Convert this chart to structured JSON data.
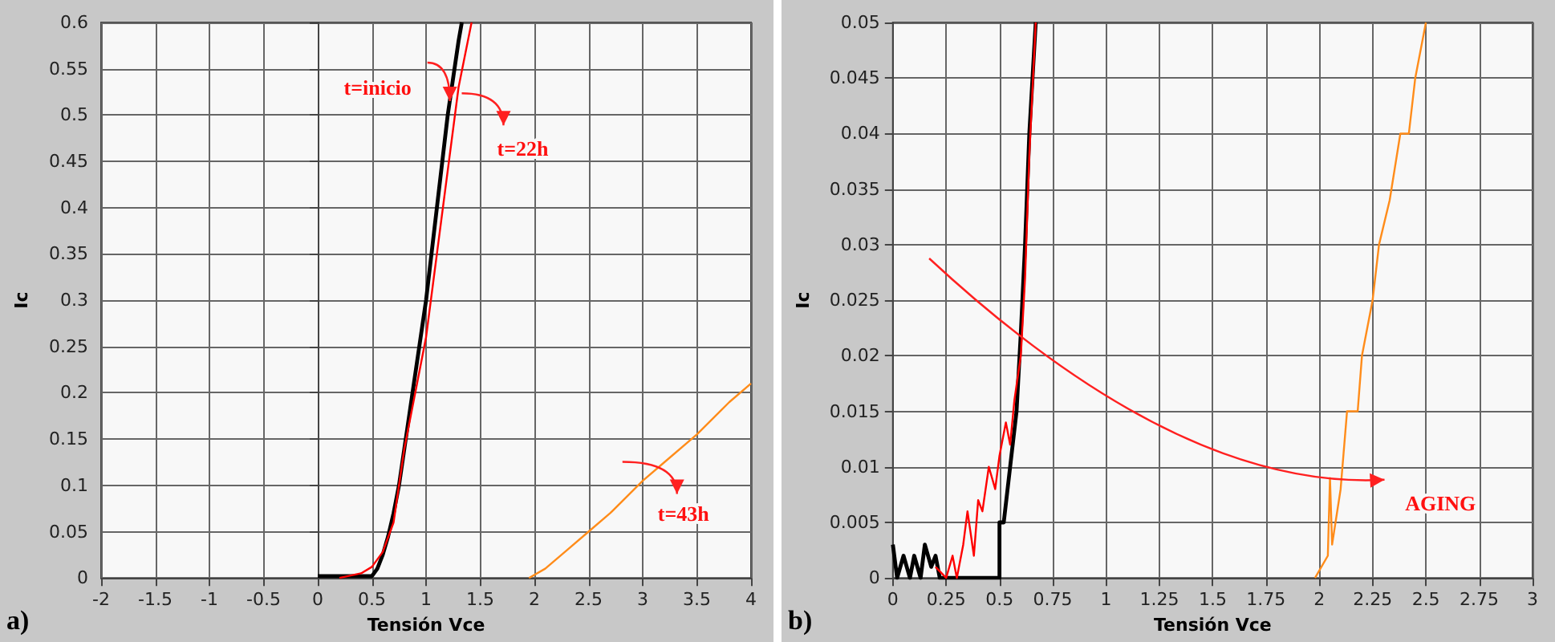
{
  "chart_data": [
    {
      "type": "line",
      "xlabel": "Tensión Vce",
      "ylabel": "Ic",
      "xlim": [
        -2,
        4
      ],
      "xticks": [
        -2,
        -1.5,
        -1,
        -0.5,
        0,
        0.5,
        1,
        1.5,
        2,
        2.5,
        3,
        3.5,
        4
      ],
      "ylim": [
        0,
        0.6
      ],
      "yticks": [
        0,
        0.05,
        0.1,
        0.15,
        0.2,
        0.25,
        0.3,
        0.35,
        0.4,
        0.45,
        0.5,
        0.55,
        0.6
      ],
      "grid": true,
      "marker": "none",
      "line_style": "solid",
      "series": [
        {
          "color": "#000000",
          "x": [
            0,
            0.3,
            0.5,
            0.55,
            0.6,
            0.65,
            0.7,
            0.75,
            0.8,
            0.9,
            1.0,
            1.1,
            1.2,
            1.3,
            1.33
          ],
          "values": [
            0.002,
            0.002,
            0.002,
            0.01,
            0.025,
            0.045,
            0.07,
            0.1,
            0.14,
            0.22,
            0.3,
            0.4,
            0.5,
            0.58,
            0.6
          ]
        },
        {
          "color": "#ff0000",
          "x": [
            0.2,
            0.4,
            0.5,
            0.6,
            0.7,
            0.75,
            0.8,
            0.9,
            1.0,
            1.1,
            1.2,
            1.3,
            1.42
          ],
          "values": [
            0,
            0.005,
            0.012,
            0.028,
            0.06,
            0.1,
            0.14,
            0.2,
            0.26,
            0.35,
            0.44,
            0.53,
            0.6
          ]
        },
        {
          "color": "#ff8c1a",
          "x": [
            1.95,
            2.1,
            2.3,
            2.5,
            2.7,
            3.0,
            3.2,
            3.5,
            3.8,
            4.0
          ],
          "values": [
            0,
            0.01,
            0.03,
            0.05,
            0.07,
            0.105,
            0.125,
            0.155,
            0.19,
            0.21
          ]
        }
      ],
      "annotations": [
        "a)",
        {
          "text": "t=inicio",
          "x": 1.22,
          "y": 0.515
        },
        {
          "text": "t=22h",
          "x": 1.3,
          "y": 0.52
        },
        {
          "text": "t=43h",
          "x": 3.05,
          "y": 0.115
        }
      ]
    },
    {
      "type": "line",
      "xlabel": "Tensión Vce",
      "ylabel": "Ic",
      "xlim": [
        0,
        3
      ],
      "xticks": [
        0,
        0.25,
        0.5,
        0.75,
        1,
        1.25,
        1.5,
        1.75,
        2,
        2.25,
        2.5,
        2.75,
        3
      ],
      "ylim": [
        0,
        0.05
      ],
      "yticks": [
        0,
        0.005,
        0.01,
        0.015,
        0.02,
        0.025,
        0.03,
        0.035,
        0.04,
        0.045,
        0.05
      ],
      "grid": true,
      "marker": "none",
      "line_style": "solid",
      "series": [
        {
          "color": "#000000",
          "x": [
            0,
            0.02,
            0.05,
            0.08,
            0.1,
            0.13,
            0.15,
            0.18,
            0.2,
            0.22,
            0.5,
            0.5,
            0.52,
            0.55,
            0.58,
            0.6,
            0.62,
            0.64,
            0.67
          ],
          "values": [
            0.003,
            0,
            0.002,
            0,
            0.002,
            0,
            0.003,
            0.001,
            0.002,
            0,
            0,
            0.005,
            0.005,
            0.01,
            0.015,
            0.022,
            0.03,
            0.04,
            0.05
          ]
        },
        {
          "color": "#ff0000",
          "x": [
            0.2,
            0.25,
            0.28,
            0.3,
            0.33,
            0.35,
            0.38,
            0.4,
            0.42,
            0.45,
            0.48,
            0.5,
            0.53,
            0.55,
            0.57,
            0.6,
            0.62,
            0.64,
            0.67
          ],
          "values": [
            0.001,
            0,
            0.002,
            0,
            0.003,
            0.006,
            0.002,
            0.007,
            0.006,
            0.01,
            0.008,
            0.011,
            0.014,
            0.012,
            0.016,
            0.02,
            0.027,
            0.038,
            0.05
          ]
        },
        {
          "color": "#ff8c1a",
          "x": [
            1.98,
            2.04,
            2.05,
            2.06,
            2.1,
            2.13,
            2.18,
            2.2,
            2.25,
            2.28,
            2.33,
            2.38,
            2.42,
            2.45,
            2.5
          ],
          "values": [
            0,
            0.002,
            0.009,
            0.003,
            0.008,
            0.015,
            0.015,
            0.02,
            0.025,
            0.03,
            0.034,
            0.04,
            0.04,
            0.045,
            0.05
          ]
        }
      ],
      "annotations": [
        "b)",
        "AGING"
      ]
    }
  ]
}
